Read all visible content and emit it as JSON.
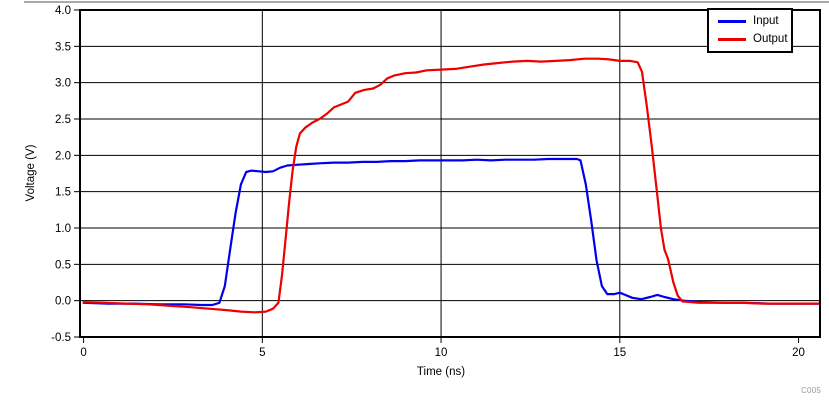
{
  "chart_data": {
    "type": "line",
    "title": "",
    "xlabel": "Time (ns)",
    "ylabel": "Voltage (V)",
    "note": "C005",
    "xlim": [
      -0.1,
      20.6
    ],
    "ylim": [
      -0.5,
      4.0
    ],
    "xticks": [
      0,
      5,
      10,
      15,
      20
    ],
    "yticks": [
      -0.5,
      0.0,
      0.5,
      1.0,
      1.5,
      2.0,
      2.5,
      3.0,
      3.5,
      4.0
    ],
    "grid": true,
    "legend_position": "top-right",
    "axis_color": "#000000",
    "grid_color": "#000000",
    "series": [
      {
        "name": "Input",
        "color": "#0000ee",
        "points": [
          [
            0,
            -0.03
          ],
          [
            0.7,
            -0.04
          ],
          [
            1.4,
            -0.04
          ],
          [
            2.1,
            -0.05
          ],
          [
            2.8,
            -0.05
          ],
          [
            3.3,
            -0.06
          ],
          [
            3.6,
            -0.06
          ],
          [
            3.8,
            -0.03
          ],
          [
            3.95,
            0.2
          ],
          [
            4.1,
            0.7
          ],
          [
            4.25,
            1.2
          ],
          [
            4.4,
            1.6
          ],
          [
            4.55,
            1.77
          ],
          [
            4.7,
            1.79
          ],
          [
            4.9,
            1.78
          ],
          [
            5.1,
            1.77
          ],
          [
            5.3,
            1.78
          ],
          [
            5.5,
            1.83
          ],
          [
            5.7,
            1.86
          ],
          [
            5.95,
            1.87
          ],
          [
            6.25,
            1.88
          ],
          [
            6.6,
            1.89
          ],
          [
            7,
            1.9
          ],
          [
            7.4,
            1.9
          ],
          [
            7.8,
            1.91
          ],
          [
            8.2,
            1.91
          ],
          [
            8.6,
            1.92
          ],
          [
            9,
            1.92
          ],
          [
            9.4,
            1.93
          ],
          [
            9.8,
            1.93
          ],
          [
            10.2,
            1.93
          ],
          [
            10.6,
            1.93
          ],
          [
            11,
            1.94
          ],
          [
            11.4,
            1.93
          ],
          [
            11.8,
            1.94
          ],
          [
            12.2,
            1.94
          ],
          [
            12.6,
            1.94
          ],
          [
            13,
            1.95
          ],
          [
            13.4,
            1.95
          ],
          [
            13.8,
            1.95
          ],
          [
            13.9,
            1.93
          ],
          [
            14.05,
            1.6
          ],
          [
            14.2,
            1.1
          ],
          [
            14.35,
            0.55
          ],
          [
            14.5,
            0.2
          ],
          [
            14.65,
            0.09
          ],
          [
            14.85,
            0.09
          ],
          [
            15,
            0.11
          ],
          [
            15.15,
            0.08
          ],
          [
            15.35,
            0.04
          ],
          [
            15.6,
            0.02
          ],
          [
            15.85,
            0.05
          ],
          [
            16.05,
            0.08
          ],
          [
            16.25,
            0.05
          ],
          [
            16.5,
            0.02
          ],
          [
            16.8,
            0
          ],
          [
            17.3,
            -0.02
          ],
          [
            17.9,
            -0.03
          ],
          [
            18.5,
            -0.03
          ],
          [
            19.2,
            -0.04
          ],
          [
            20,
            -0.04
          ],
          [
            20.6,
            -0.04
          ]
        ]
      },
      {
        "name": "Output",
        "color": "#ee0000",
        "points": [
          [
            0,
            -0.02
          ],
          [
            0.6,
            -0.03
          ],
          [
            1.2,
            -0.04
          ],
          [
            1.8,
            -0.05
          ],
          [
            2.4,
            -0.07
          ],
          [
            3,
            -0.09
          ],
          [
            3.5,
            -0.11
          ],
          [
            4,
            -0.13
          ],
          [
            4.4,
            -0.15
          ],
          [
            4.8,
            -0.16
          ],
          [
            5.1,
            -0.15
          ],
          [
            5.3,
            -0.11
          ],
          [
            5.45,
            -0.03
          ],
          [
            5.55,
            0.35
          ],
          [
            5.65,
            0.85
          ],
          [
            5.75,
            1.35
          ],
          [
            5.85,
            1.8
          ],
          [
            5.95,
            2.12
          ],
          [
            6.05,
            2.3
          ],
          [
            6.2,
            2.38
          ],
          [
            6.4,
            2.45
          ],
          [
            6.6,
            2.5
          ],
          [
            6.8,
            2.57
          ],
          [
            7,
            2.66
          ],
          [
            7.2,
            2.7
          ],
          [
            7.4,
            2.74
          ],
          [
            7.6,
            2.86
          ],
          [
            7.85,
            2.9
          ],
          [
            8.1,
            2.92
          ],
          [
            8.3,
            2.97
          ],
          [
            8.5,
            3.06
          ],
          [
            8.7,
            3.1
          ],
          [
            9,
            3.13
          ],
          [
            9.3,
            3.14
          ],
          [
            9.6,
            3.17
          ],
          [
            10,
            3.18
          ],
          [
            10.4,
            3.19
          ],
          [
            10.8,
            3.22
          ],
          [
            11.2,
            3.25
          ],
          [
            11.6,
            3.27
          ],
          [
            12,
            3.29
          ],
          [
            12.4,
            3.3
          ],
          [
            12.8,
            3.29
          ],
          [
            13.2,
            3.3
          ],
          [
            13.6,
            3.31
          ],
          [
            14,
            3.33
          ],
          [
            14.4,
            3.33
          ],
          [
            14.7,
            3.32
          ],
          [
            15,
            3.3
          ],
          [
            15.3,
            3.3
          ],
          [
            15.5,
            3.28
          ],
          [
            15.62,
            3.15
          ],
          [
            15.75,
            2.7
          ],
          [
            15.9,
            2.1
          ],
          [
            16.05,
            1.45
          ],
          [
            16.15,
            1.0
          ],
          [
            16.25,
            0.7
          ],
          [
            16.35,
            0.57
          ],
          [
            16.5,
            0.25
          ],
          [
            16.62,
            0.07
          ],
          [
            16.75,
            -0.01
          ],
          [
            17.2,
            -0.03
          ],
          [
            17.8,
            -0.03
          ],
          [
            18.4,
            -0.03
          ],
          [
            19,
            -0.04
          ],
          [
            19.6,
            -0.04
          ],
          [
            20.6,
            -0.04
          ]
        ]
      }
    ]
  }
}
